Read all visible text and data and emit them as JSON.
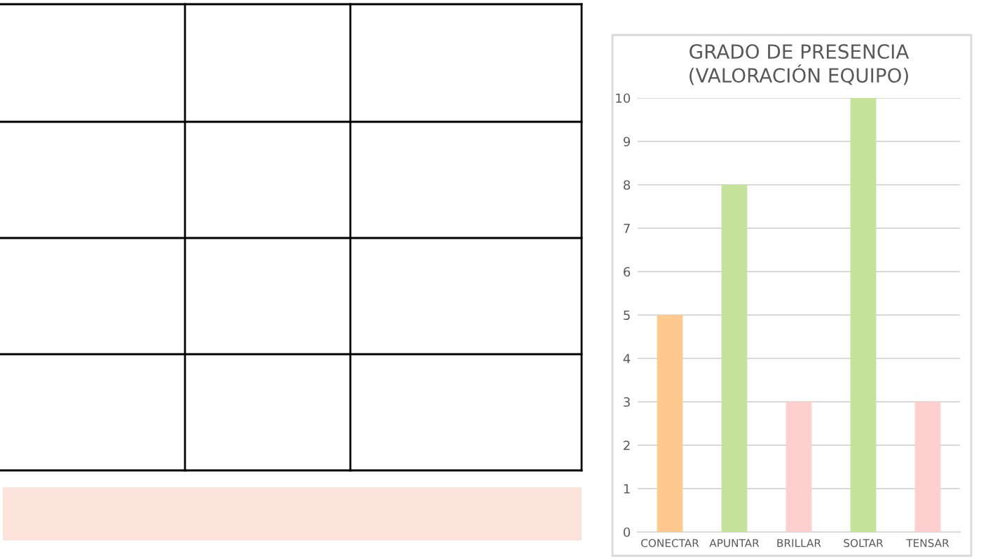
{
  "chart_data": {
    "type": "bar",
    "title": "GRADO DE PRESENCIA\n(VALORACIÓN EQUIPO)",
    "categories": [
      "CONECTAR",
      "APUNTAR",
      "BRILLAR",
      "SOLTAR",
      "TENSAR"
    ],
    "values": [
      5,
      8,
      3,
      10,
      3
    ],
    "colors": [
      "#fdc98f",
      "#c5e39a",
      "#fdd0cf",
      "#c5e39a",
      "#fdd0cf"
    ],
    "ylim": [
      0,
      10
    ],
    "yticks": [
      0,
      1,
      2,
      3,
      4,
      5,
      6,
      7,
      8,
      9,
      10
    ],
    "grid": "y"
  }
}
